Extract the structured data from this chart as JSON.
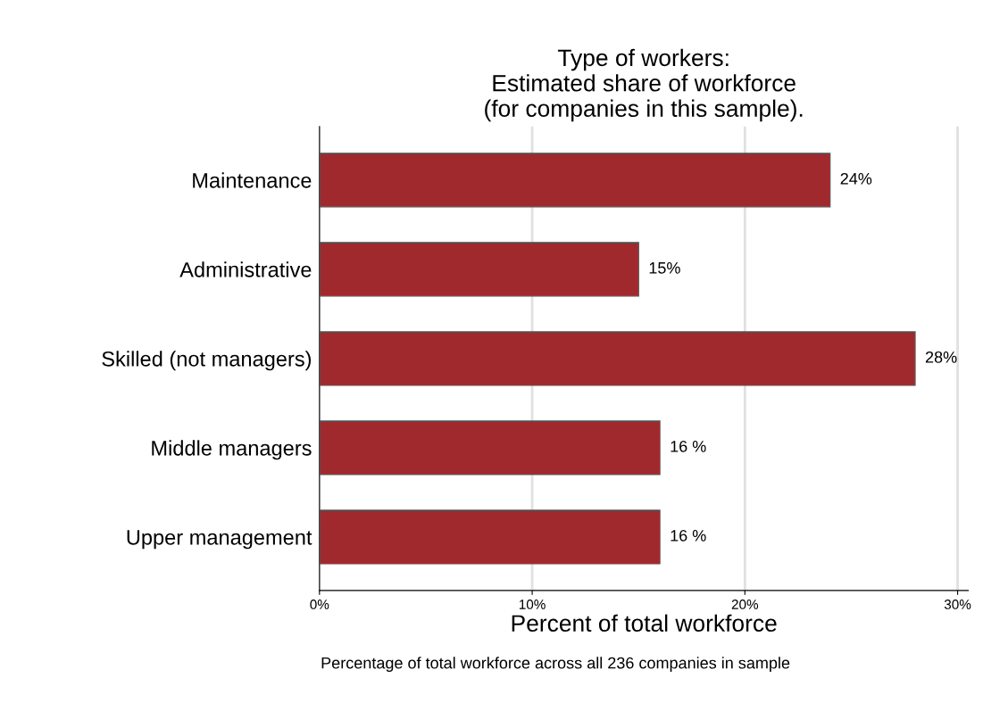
{
  "chart_data": {
    "type": "bar",
    "orientation": "horizontal",
    "title": "Type of workers:\nEstimated share of workforce\n(for companies in this sample).",
    "xlabel": "Percent of total workforce",
    "annotations": [
      "Percentage of total workforce across all 236 companies in sample"
    ],
    "categories": [
      "Maintenance",
      "Administrative",
      "Skilled (not managers)",
      "Middle managers",
      "Upper management"
    ],
    "values": [
      24,
      15,
      28,
      16,
      16
    ],
    "value_labels": [
      "24%",
      "15%",
      "28%",
      "16 %",
      "16 %"
    ],
    "color": "#a0292e",
    "xlim": [
      0,
      30.5
    ],
    "xticks": [
      {
        "value": 0,
        "label": "0%"
      },
      {
        "value": 10,
        "label": "10%"
      },
      {
        "value": 20,
        "label": "20%"
      },
      {
        "value": 30,
        "label": "30%"
      }
    ],
    "grid": "x",
    "legend": false
  }
}
